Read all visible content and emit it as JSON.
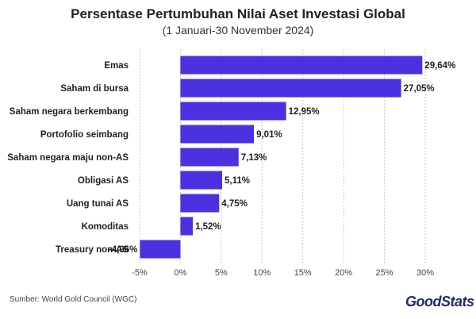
{
  "header": {
    "title": "Persentase Pertumbuhan Nilai Aset Investasi Global",
    "subtitle": "(1 Januari-30 November 2024)"
  },
  "footer": {
    "source": "Sumber: World Gold Council (WGC)",
    "brand": "GoodStats"
  },
  "colors": {
    "bar": "#4a32e0",
    "grid": "#c9c9c9",
    "text": "#1f1f1f"
  },
  "chart_data": {
    "type": "bar",
    "orientation": "horizontal",
    "title": "Persentase Pertumbuhan Nilai Aset Investasi Global",
    "subtitle": "(1 Januari-30 November 2024)",
    "categories": [
      "Emas",
      "Saham di bursa",
      "Saham negara berkembang",
      "Portofolio seimbang",
      "Saham negara maju non-AS",
      "Obligasi AS",
      "Uang tunai AS",
      "Komoditas",
      "Treasury non-AS"
    ],
    "values": [
      29.64,
      27.05,
      12.95,
      9.01,
      7.13,
      5.11,
      4.75,
      1.52,
      -4.96
    ],
    "data_labels": [
      "29,64%",
      "27,05%",
      "12,95%",
      "9,01%",
      "7,13%",
      "5,11%",
      "4,75%",
      "1,52%",
      "-4,96%"
    ],
    "xlim": [
      -5,
      30
    ],
    "x_ticks": [
      -5,
      0,
      5,
      10,
      15,
      20,
      25,
      30
    ],
    "x_tick_labels": [
      "-5%",
      "0%",
      "5%",
      "10%",
      "15%",
      "20%",
      "25%",
      "30%"
    ],
    "grid": "vertical",
    "legend": "none"
  }
}
